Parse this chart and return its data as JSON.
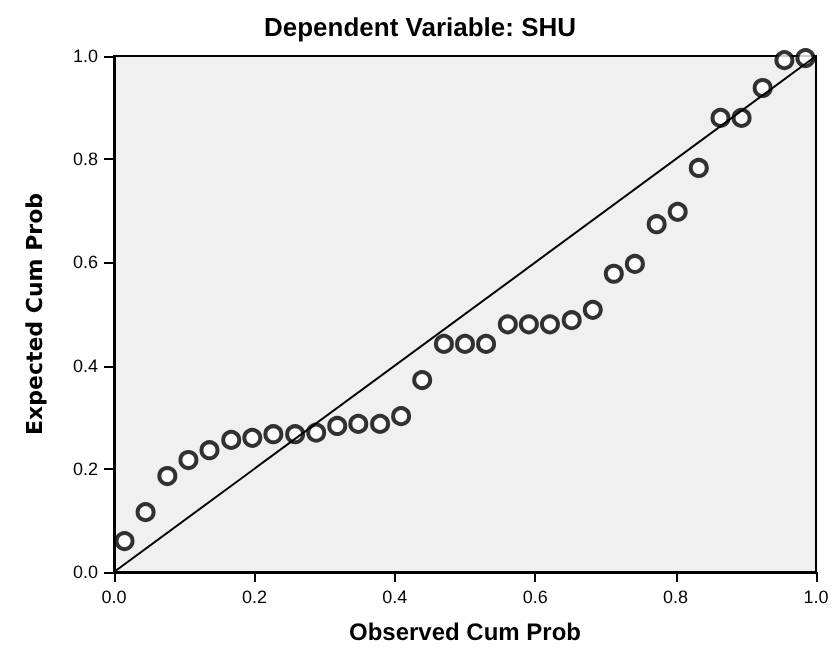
{
  "chart_data": {
    "type": "scatter",
    "title": "Dependent Variable: SHU",
    "xlabel": "Observed Cum Prob",
    "ylabel": "Expected Cum Prob",
    "marker": "circle",
    "grid": false,
    "xlim": [
      0,
      1
    ],
    "ylim": [
      0,
      1
    ],
    "xticks": [
      {
        "value": 0,
        "label": "0.0"
      },
      {
        "value": 0.2,
        "label": "0.2"
      },
      {
        "value": 0.4,
        "label": "0.4"
      },
      {
        "value": 0.6,
        "label": "0.6"
      },
      {
        "value": 0.8,
        "label": "0.8"
      },
      {
        "value": 1,
        "label": "1.0"
      }
    ],
    "yticks": [
      {
        "value": 0,
        "label": "0.0"
      },
      {
        "value": 0.2,
        "label": "0.2"
      },
      {
        "value": 0.4,
        "label": "0.4"
      },
      {
        "value": 0.6,
        "label": "0.6"
      },
      {
        "value": 0.8,
        "label": "0.8"
      },
      {
        "value": 1,
        "label": "1.0"
      }
    ],
    "series": [
      {
        "color": "#000000",
        "x": [
          0.015,
          0.045,
          0.076,
          0.106,
          0.136,
          0.167,
          0.197,
          0.227,
          0.258,
          0.288,
          0.318,
          0.348,
          0.379,
          0.409,
          0.439,
          0.47,
          0.5,
          0.53,
          0.561,
          0.591,
          0.621,
          0.652,
          0.682,
          0.712,
          0.742,
          0.773,
          0.803,
          0.833,
          0.864,
          0.894,
          0.924,
          0.955,
          0.985
        ],
        "values": [
          0.06,
          0.116,
          0.186,
          0.217,
          0.236,
          0.256,
          0.26,
          0.267,
          0.267,
          0.27,
          0.283,
          0.287,
          0.287,
          0.302,
          0.372,
          0.442,
          0.442,
          0.442,
          0.48,
          0.48,
          0.48,
          0.488,
          0.508,
          0.578,
          0.597,
          0.674,
          0.698,
          0.783,
          0.88,
          0.88,
          0.938,
          0.992,
          0.996
        ]
      },
      {
        "type": "line",
        "color": "#000000",
        "x": [
          0,
          1
        ],
        "values": [
          0,
          1
        ],
        "marker": "none",
        "line_style": "solid"
      }
    ]
  }
}
